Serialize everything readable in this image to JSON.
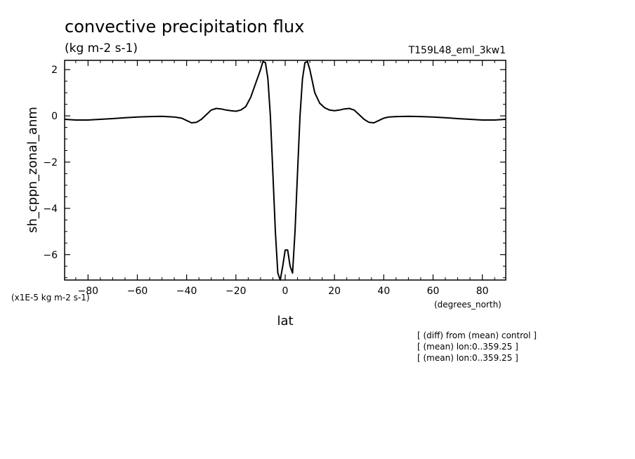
{
  "chart_data": {
    "type": "line",
    "title": "convective precipitation flux",
    "subtitle": "(kg m-2 s-1)",
    "run_label": "T159L48_eml_3kw1",
    "xlabel": "lat",
    "x_units": "(degrees_north)",
    "ylabel": "sh_cppn_zonal_anm",
    "y_scale_note": "(x1E-5 kg m-2 s-1)",
    "xlim": [
      -89.5,
      89.5
    ],
    "ylim": [
      -7.1,
      2.4
    ],
    "x_ticks": [
      -80,
      -60,
      -40,
      -20,
      0,
      20,
      40,
      60,
      80
    ],
    "y_ticks": [
      -6,
      -4,
      -2,
      0,
      2
    ],
    "grid": false,
    "footnotes": [
      "[ (diff) from (mean) control ]",
      "[ (mean) lon:0..359.25 ]",
      "[ (mean) lon:0..359.25 ]"
    ],
    "series": [
      {
        "x": [
          -89.5,
          -85,
          -80,
          -75,
          -70,
          -65,
          -60,
          -55,
          -50,
          -45,
          -42,
          -40,
          -38,
          -36,
          -34,
          -32,
          -30,
          -28,
          -26,
          -24,
          -22,
          -20,
          -18,
          -16,
          -14,
          -12,
          -10,
          -9,
          -8,
          -7,
          -6,
          -5,
          -4,
          -3,
          -2,
          -1,
          0,
          1,
          2,
          3,
          4,
          5,
          6,
          7,
          8,
          9,
          10,
          12,
          14,
          16,
          18,
          20,
          22,
          24,
          26,
          28,
          30,
          32,
          34,
          36,
          38,
          40,
          42,
          45,
          50,
          55,
          60,
          65,
          70,
          75,
          80,
          85,
          89.5
        ],
        "y": [
          -0.15,
          -0.18,
          -0.18,
          -0.15,
          -0.12,
          -0.08,
          -0.05,
          -0.03,
          -0.02,
          -0.05,
          -0.1,
          -0.2,
          -0.3,
          -0.28,
          -0.15,
          0.05,
          0.25,
          0.32,
          0.3,
          0.25,
          0.22,
          0.2,
          0.25,
          0.4,
          0.8,
          1.4,
          2.0,
          2.35,
          2.3,
          1.6,
          0.0,
          -2.5,
          -5.0,
          -6.8,
          -7.1,
          -6.5,
          -5.8,
          -5.8,
          -6.5,
          -6.8,
          -5.0,
          -2.5,
          0.0,
          1.6,
          2.3,
          2.35,
          2.0,
          1.0,
          0.55,
          0.35,
          0.25,
          0.22,
          0.25,
          0.3,
          0.32,
          0.25,
          0.05,
          -0.15,
          -0.28,
          -0.3,
          -0.2,
          -0.1,
          -0.05,
          -0.03,
          -0.02,
          -0.03,
          -0.05,
          -0.08,
          -0.12,
          -0.15,
          -0.18,
          -0.18,
          -0.15
        ]
      }
    ]
  }
}
